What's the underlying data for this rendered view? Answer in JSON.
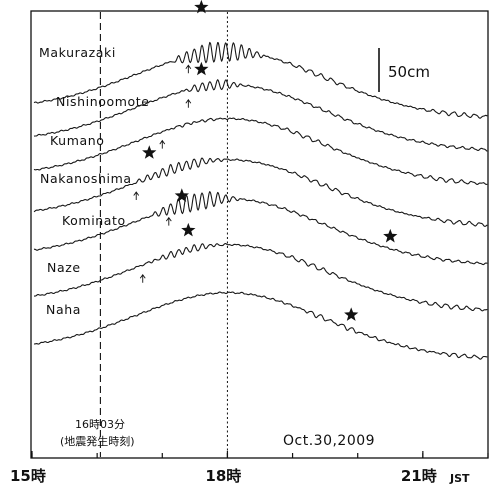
{
  "chart_data": {
    "type": "line",
    "title": "",
    "xlabel": "",
    "ylabel": "",
    "x_unit": "JST",
    "xlim": [
      15.0,
      22.0
    ],
    "x_ticks": [
      {
        "value": 15,
        "label": "15"
      },
      {
        "value": 18,
        "label": "18"
      },
      {
        "value": 21,
        "label": "21"
      }
    ],
    "tick_unit": "時",
    "grid": false,
    "reference_lines": [
      {
        "x": 16.05,
        "style": "dashed",
        "label": "16時03分",
        "sublabel": "(地震発生時刻)"
      },
      {
        "x": 18.0,
        "style": "dotted"
      }
    ],
    "date_label": "Oct.30,2009",
    "scale_bar_label": "50cm",
    "scale_bar_value_cm": 50,
    "series": [
      {
        "name": "Makurazaki",
        "arrival_x": 17.4,
        "peak_x": 17.6,
        "wave": {
          "amp": 0.45,
          "start": 17.1,
          "end": 18.6
        }
      },
      {
        "name": "Nishinoomote",
        "arrival_x": 17.4,
        "peak_x": 17.6,
        "wave": {
          "amp": 0.22,
          "start": 17.3,
          "end": 18.3
        }
      },
      {
        "name": "Kumano",
        "arrival_x": 17.0,
        "wave": {
          "amp": 0.05,
          "start": 17.0,
          "end": 18.0
        }
      },
      {
        "name": "Nakanoshima",
        "arrival_x": 16.6,
        "peak_x": 16.8,
        "wave": {
          "amp": 0.22,
          "start": 16.5,
          "end": 18.0
        }
      },
      {
        "name": "Kominato",
        "arrival_x": 17.1,
        "peak_x": 17.3,
        "second_peak_x": 20.5,
        "wave": {
          "amp": 0.4,
          "start": 16.8,
          "end": 18.2
        }
      },
      {
        "name": "Naze",
        "arrival_x": 16.7,
        "peak_x": 17.4,
        "wave": {
          "amp": 0.15,
          "start": 16.7,
          "end": 18.0
        }
      },
      {
        "name": "Naha",
        "peak_x": 19.9,
        "wave": {
          "amp": 0.04,
          "start": 18.0,
          "end": 22.0
        }
      }
    ]
  }
}
